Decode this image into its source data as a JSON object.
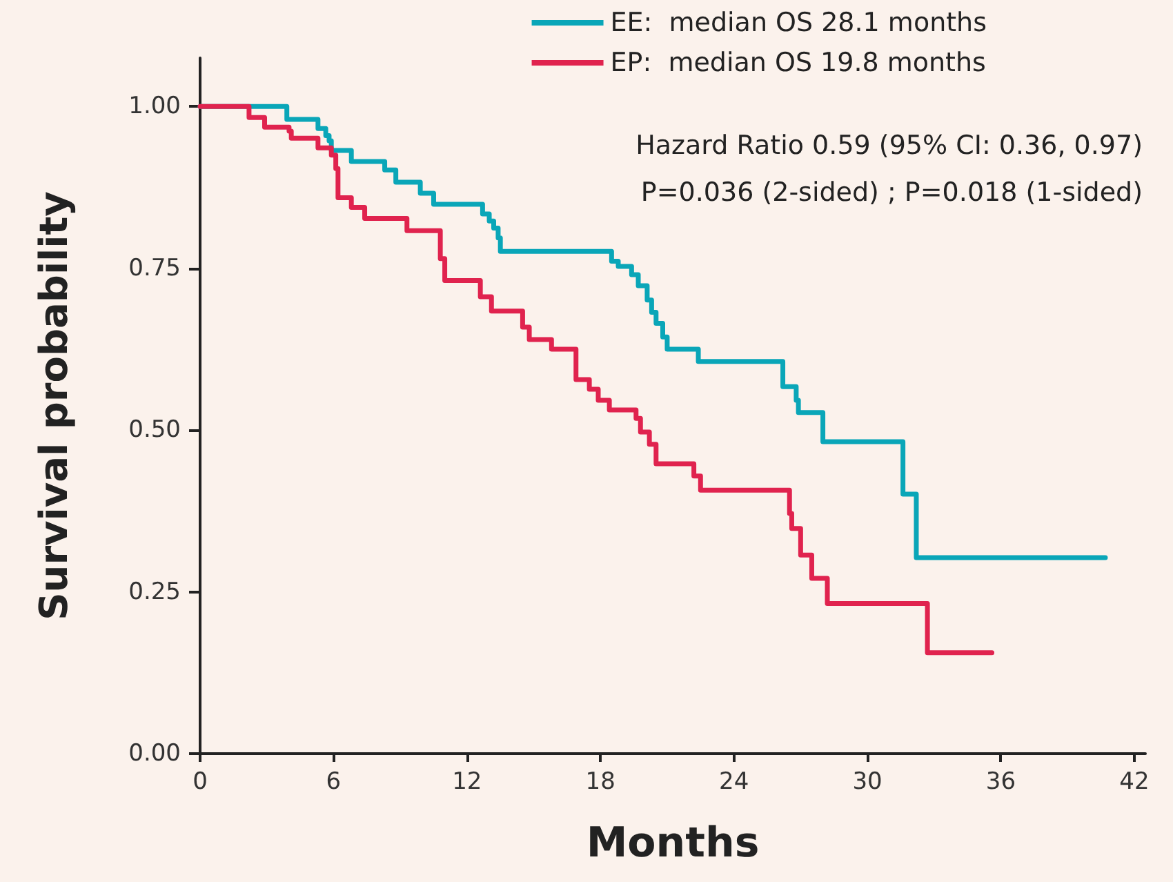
{
  "chart_data": {
    "type": "step",
    "xlabel": "Months",
    "ylabel": "Survival probability",
    "annotations": [
      "Hazard Ratio 0.59 (95% CI: 0.36, 0.97)",
      "P=0.036 (2-sided) ; P=0.018 (1-sided)"
    ],
    "series": [
      {
        "name": "EE:  median OS 28.1 months",
        "color": "#0aa6b8",
        "x": [
          0,
          3.9,
          5.3,
          5.65,
          5.8,
          5.9,
          6.8,
          8.3,
          8.8,
          9.9,
          10.5,
          12.7,
          13.0,
          13.2,
          13.4,
          13.5,
          18.5,
          18.8,
          19.4,
          19.7,
          20.1,
          20.3,
          20.5,
          20.8,
          21.0,
          22.4,
          26.2,
          26.8,
          26.9,
          28.0,
          31.6,
          32.2,
          40.7
        ],
        "values": [
          1.0,
          0.98,
          0.966,
          0.955,
          0.947,
          0.932,
          0.915,
          0.902,
          0.883,
          0.866,
          0.849,
          0.834,
          0.823,
          0.812,
          0.797,
          0.776,
          0.761,
          0.753,
          0.74,
          0.723,
          0.701,
          0.682,
          0.665,
          0.644,
          0.625,
          0.606,
          0.567,
          0.546,
          0.527,
          0.482,
          0.401,
          0.303,
          0.303
        ]
      },
      {
        "name": "EP:  median OS 19.8 months",
        "color": "#e0234e",
        "x": [
          0,
          2.2,
          2.9,
          4.0,
          4.1,
          5.3,
          5.9,
          6.1,
          6.2,
          6.8,
          7.4,
          9.3,
          10.8,
          11.0,
          12.6,
          13.1,
          14.5,
          14.8,
          15.8,
          16.9,
          17.5,
          17.9,
          18.4,
          19.6,
          19.8,
          20.2,
          20.5,
          22.2,
          22.5,
          26.5,
          26.6,
          27.0,
          27.5,
          28.2,
          32.7,
          35.6
        ],
        "values": [
          1.0,
          0.983,
          0.968,
          0.962,
          0.951,
          0.936,
          0.925,
          0.904,
          0.859,
          0.844,
          0.827,
          0.808,
          0.765,
          0.731,
          0.706,
          0.684,
          0.659,
          0.64,
          0.625,
          0.578,
          0.563,
          0.546,
          0.531,
          0.518,
          0.497,
          0.478,
          0.448,
          0.429,
          0.407,
          0.371,
          0.348,
          0.307,
          0.271,
          0.232,
          0.156,
          0.156
        ]
      }
    ],
    "xlim": [
      0,
      42.5
    ],
    "xticks": [
      0,
      6,
      12,
      18,
      24,
      30,
      36,
      42
    ],
    "ylim": [
      0,
      1.075
    ],
    "yticks": [
      {
        "value": 0,
        "label": "0.00"
      },
      {
        "value": 0.25,
        "label": "0.25"
      },
      {
        "value": 0.5,
        "label": "0.50"
      },
      {
        "value": 0.75,
        "label": "0.75"
      },
      {
        "value": 1,
        "label": "1.00"
      }
    ],
    "grid": false,
    "legend": "top right",
    "marker": "none",
    "line_style": "solid"
  }
}
